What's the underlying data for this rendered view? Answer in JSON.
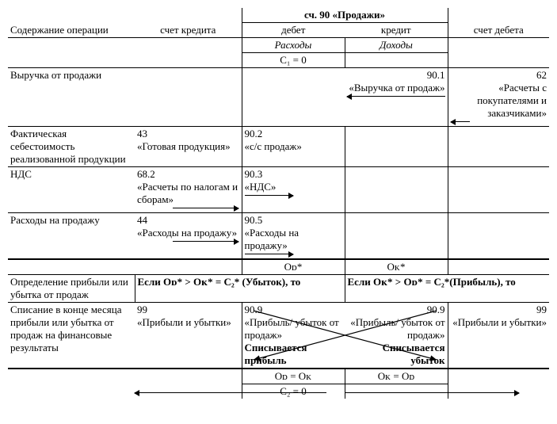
{
  "header": {
    "acct_title": "сч. 90 «Продажи»",
    "col_content": "Содержание операции",
    "col_credit_acct": "счет кредита",
    "col_debit": "дебет",
    "col_credit": "кредит",
    "col_debit_acct": "счет дебета",
    "expenses": "Расходы",
    "income": "Доходы",
    "c1_zero": "С₁ = 0"
  },
  "rows": {
    "revenue": {
      "title": "Выручка от продажи",
      "credit_sub": "90.1\n«Выручка от продаж»",
      "debit_acct": "62\n«Расчеты с покупателями и заказчиками»"
    },
    "cost": {
      "title": "Фактическая себестоимость реализованной продукции",
      "credit_acct": "43\n«Готовая продукция»",
      "debit_sub": "90.2\n«с/с продаж»"
    },
    "nds": {
      "title": "НДС",
      "credit_acct": "68.2\n«Расчеты по налогам и сборам»",
      "debit_sub": "90.3\n«НДС»"
    },
    "selling": {
      "title": "Расходы на продажу",
      "credit_acct": "44\n«Расходы на продажу»",
      "debit_sub": "90.5\n«Расходы на продажу»"
    },
    "turnover": {
      "od": "Оᴅ*",
      "ok": "Оᴋ*"
    },
    "profit_det": {
      "title": "Определение прибыли или убытка от продаж",
      "loss": "Если Оᴅ* > Оᴋ* = С₂* (Убыток), то",
      "profit": "Если Оᴋ* > Оᴅ* = С₂*(Прибыль), то"
    },
    "writeoff": {
      "title": "Списание в конце месяца прибыли или убытка от продаж на финансовые результаты",
      "credit_acct": "99\n«Прибыли и убытки»",
      "debit_sub": "90.9\n«Прибыль/ убыток от продаж»",
      "credit_sub": "90.9\n«Прибыль/ убыток от продаж»",
      "debit_acct": "99\n«Прибыли и убытки»",
      "note_left": "Списывается прибыль",
      "note_right": "Списывается убыток"
    },
    "footer": {
      "eq_left": "Оᴅ = Оᴋ",
      "eq_right": "Оᴋ = Оᴅ",
      "c2_zero": "С₂ = 0"
    }
  }
}
